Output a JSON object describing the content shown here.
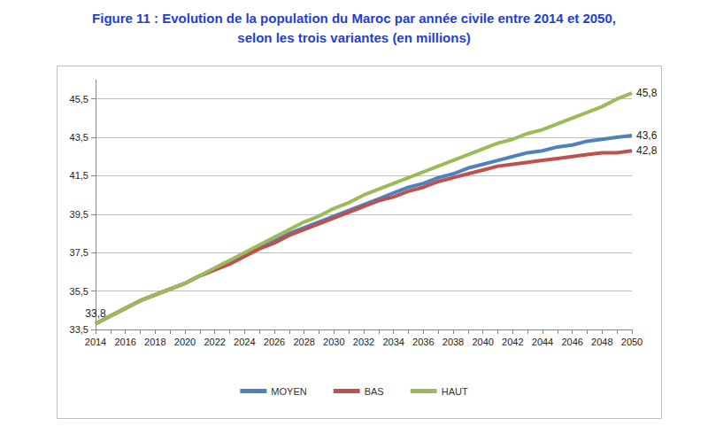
{
  "chart_data": {
    "type": "line",
    "title": "Figure 11 : Evolution de la population du Maroc par année civile entre 2014 et 2050,\nselon les trois variantes (en millions)",
    "categories": [
      "2014",
      null,
      "2016",
      null,
      "2018",
      null,
      "2020",
      null,
      "2022",
      null,
      "2024",
      null,
      "2026",
      null,
      "2028",
      null,
      "2030",
      null,
      "2032",
      null,
      "2034",
      null,
      "2036",
      null,
      "2038",
      null,
      "2040",
      null,
      "2042",
      null,
      "2044",
      null,
      "2046",
      null,
      "2048",
      null,
      "2050"
    ],
    "series": [
      {
        "name": "MOYEN",
        "color": "#4f81bd",
        "values": [
          33.8,
          34.2,
          34.6,
          35.0,
          35.3,
          35.6,
          35.9,
          36.3,
          36.6,
          37.0,
          37.4,
          37.8,
          38.1,
          38.5,
          38.8,
          39.1,
          39.4,
          39.7,
          40.0,
          40.3,
          40.6,
          40.9,
          41.1,
          41.4,
          41.6,
          41.9,
          42.1,
          42.3,
          42.5,
          42.7,
          42.8,
          43.0,
          43.1,
          43.3,
          43.4,
          43.5,
          43.6
        ],
        "value_labels": [
          null,
          null,
          null,
          null,
          null,
          null,
          null,
          null,
          null,
          null,
          null,
          null,
          null,
          null,
          null,
          null,
          null,
          null,
          null,
          null,
          null,
          null,
          null,
          null,
          null,
          null,
          null,
          null,
          null,
          null,
          null,
          null,
          null,
          null,
          null,
          null,
          "43,6"
        ]
      },
      {
        "name": "BAS",
        "color": "#c0504d",
        "values": [
          33.8,
          34.2,
          34.6,
          35.0,
          35.3,
          35.6,
          35.9,
          36.3,
          36.6,
          36.9,
          37.3,
          37.7,
          38.0,
          38.4,
          38.7,
          39.0,
          39.3,
          39.6,
          39.9,
          40.2,
          40.4,
          40.7,
          40.9,
          41.2,
          41.4,
          41.6,
          41.8,
          42.0,
          42.1,
          42.2,
          42.3,
          42.4,
          42.5,
          42.6,
          42.7,
          42.7,
          42.8
        ],
        "value_labels": [
          "33,8",
          null,
          null,
          null,
          null,
          null,
          null,
          null,
          null,
          null,
          null,
          null,
          null,
          null,
          null,
          null,
          null,
          null,
          null,
          null,
          null,
          null,
          null,
          null,
          null,
          null,
          null,
          null,
          null,
          null,
          null,
          null,
          null,
          null,
          null,
          null,
          "42,8"
        ]
      },
      {
        "name": "HAUT",
        "color": "#9bbb59",
        "values": [
          33.8,
          34.2,
          34.6,
          35.0,
          35.3,
          35.6,
          35.9,
          36.3,
          36.7,
          37.1,
          37.5,
          37.9,
          38.3,
          38.7,
          39.1,
          39.4,
          39.8,
          40.1,
          40.5,
          40.8,
          41.1,
          41.4,
          41.7,
          42.0,
          42.3,
          42.6,
          42.9,
          43.2,
          43.4,
          43.7,
          43.9,
          44.2,
          44.5,
          44.8,
          45.1,
          45.5,
          45.8
        ],
        "value_labels": [
          null,
          null,
          null,
          null,
          null,
          null,
          null,
          null,
          null,
          null,
          null,
          null,
          null,
          null,
          null,
          null,
          null,
          null,
          null,
          null,
          null,
          null,
          null,
          null,
          null,
          null,
          null,
          null,
          null,
          null,
          null,
          null,
          null,
          null,
          null,
          null,
          "45,8"
        ]
      }
    ],
    "ylim": [
      33.5,
      46.5
    ],
    "yticks": [
      {
        "value": 33.5,
        "label": "33,5"
      },
      {
        "value": 35.5,
        "label": "35,5"
      },
      {
        "value": 37.5,
        "label": "37,5"
      },
      {
        "value": 39.5,
        "label": "39,5"
      },
      {
        "value": 41.5,
        "label": "41,5"
      },
      {
        "value": 43.5,
        "label": "43,5"
      },
      {
        "value": 45.5,
        "label": "45,5"
      }
    ],
    "grid": true,
    "legend": "bottom"
  }
}
